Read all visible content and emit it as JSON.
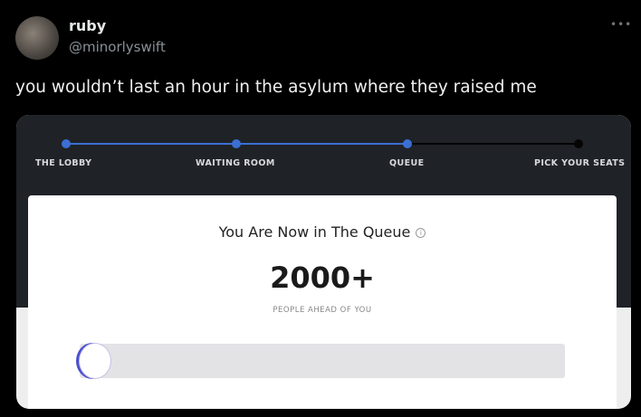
{
  "tweet": {
    "name": "ruby",
    "handle": "@minorlyswift",
    "more_icon": "more-horizontal-icon",
    "text": "you wouldn’t last an hour in the asylum where they raised me"
  },
  "queue": {
    "steps": [
      {
        "label": "THE LOBBY",
        "done": true
      },
      {
        "label": "WAITING ROOM",
        "done": true
      },
      {
        "label": "QUEUE",
        "done": true
      },
      {
        "label": "PICK YOUR SEATS",
        "done": false
      }
    ],
    "title": "You Are Now in The Queue",
    "info_icon": "info-icon",
    "count": "2000+",
    "count_label": "PEOPLE AHEAD OF YOU",
    "progress_percent": 0,
    "accent": "#3b6fd4"
  }
}
